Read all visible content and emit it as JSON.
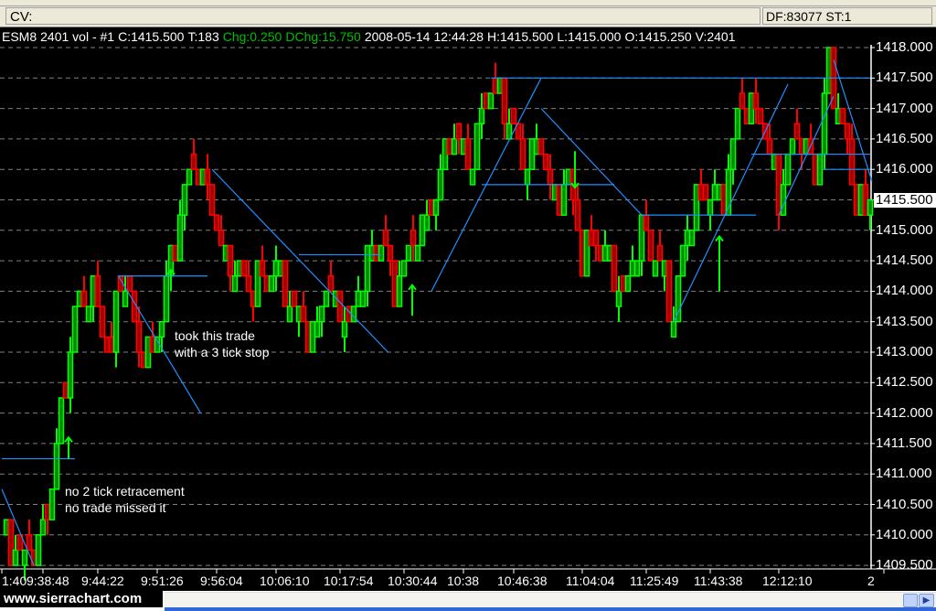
{
  "cv_bar": {
    "label": "CV:",
    "status": "DF:83077  ST:1"
  },
  "header": {
    "symbol": "ESM8",
    "period": "2401 vol - #1",
    "close": "C:1415.500",
    "trades": "T:183",
    "chg": "Chg:0.250",
    "dchg": "DChg:15.750",
    "date": "2008-05-14",
    "time": "12:44:28",
    "high": "H:1415.500",
    "low": "L:1415.000",
    "open": "O:1415.250",
    "volume": "V:2401"
  },
  "colors": {
    "up": "#00ff00",
    "up_fill": "#008a00",
    "down": "#ff0000",
    "down_fill": "#a00000",
    "drawing": "#1e90ff",
    "grid": "#808080",
    "arrow": "#00ff00"
  },
  "annotations": {
    "trade_note": [
      "took this trade",
      "with a 3 tick stop"
    ],
    "missed_note": [
      "no 2 tick retracement",
      "no trade missed it"
    ]
  },
  "footer": {
    "logo": "www.sierrachart.com"
  },
  "chart_data": {
    "type": "bar",
    "title": "",
    "ylim": [
      1409.5,
      1418.0
    ],
    "y_ticks": [
      "1418.000",
      "1417.500",
      "1417.000",
      "1416.500",
      "1416.000",
      "1415.500",
      "1415.000",
      "1414.500",
      "1414.000",
      "1413.500",
      "1413.000",
      "1412.500",
      "1412.000",
      "1411.500",
      "1411.000",
      "1410.500",
      "1410.000",
      "1409.500"
    ],
    "current_price": "1415.500",
    "x_tick_labels": [
      "1:40",
      "9:38:48",
      "9:44:22",
      "9:51:26",
      "9:56:04",
      "10:06:10",
      "10:17:54",
      "10:30:44",
      "10:38",
      "10:46:38",
      "11:04:04",
      "11:25:49",
      "11:43:38",
      "12:12:10",
      "2"
    ],
    "x_tick_bars": [
      0,
      9,
      21,
      34,
      47,
      60,
      74,
      88,
      101,
      112,
      127,
      141,
      155,
      170,
      193
    ],
    "grid": true,
    "price_path": [
      [
        0,
        1410.0
      ],
      [
        4,
        1409.5
      ],
      [
        8,
        1409.75
      ],
      [
        10,
        1410.5
      ],
      [
        13,
        1412.0
      ],
      [
        16,
        1413.5
      ],
      [
        20,
        1414.0
      ],
      [
        24,
        1413.0
      ],
      [
        26,
        1414.25
      ],
      [
        30,
        1413.0
      ],
      [
        33,
        1413.0
      ],
      [
        37,
        1414.5
      ],
      [
        40,
        1415.5
      ],
      [
        42,
        1416.0
      ],
      [
        46,
        1415.5
      ],
      [
        49,
        1414.5
      ],
      [
        54,
        1414.0
      ],
      [
        60,
        1414.5
      ],
      [
        64,
        1413.5
      ],
      [
        68,
        1413.25
      ],
      [
        71,
        1414.25
      ],
      [
        76,
        1413.25
      ],
      [
        80,
        1414.5
      ],
      [
        83,
        1415.0
      ],
      [
        86,
        1414.0
      ],
      [
        89,
        1414.5
      ],
      [
        94,
        1415.5
      ],
      [
        98,
        1416.5
      ],
      [
        102,
        1416.0
      ],
      [
        107,
        1417.5
      ],
      [
        110,
        1417.0
      ],
      [
        114,
        1416.0
      ],
      [
        118,
        1416.5
      ],
      [
        121,
        1415.5
      ],
      [
        124,
        1415.75
      ],
      [
        127,
        1414.5
      ],
      [
        130,
        1415.0
      ],
      [
        133,
        1414.5
      ],
      [
        136,
        1413.75
      ],
      [
        140,
        1415.0
      ],
      [
        144,
        1414.5
      ],
      [
        147,
        1413.5
      ],
      [
        150,
        1415.0
      ],
      [
        154,
        1415.75
      ],
      [
        158,
        1415.5
      ],
      [
        162,
        1417.0
      ],
      [
        166,
        1417.0
      ],
      [
        170,
        1415.5
      ],
      [
        174,
        1416.5
      ],
      [
        178,
        1416.0
      ],
      [
        181,
        1417.75
      ],
      [
        184,
        1416.5
      ],
      [
        187,
        1415.5
      ],
      [
        190,
        1415.25
      ]
    ],
    "drawings": [
      {
        "kind": "hline",
        "from": [
          0,
          1411.25
        ],
        "to": [
          16,
          1411.25
        ]
      },
      {
        "kind": "trend",
        "from": [
          0,
          1410.75
        ],
        "to": [
          7,
          1409.5
        ]
      },
      {
        "kind": "hline",
        "from": [
          25.5,
          1414.25
        ],
        "to": [
          45,
          1414.25
        ]
      },
      {
        "kind": "trend",
        "from": [
          25.5,
          1414.25
        ],
        "to": [
          43.5,
          1412.0
        ]
      },
      {
        "kind": "trend",
        "from": [
          46,
          1416.0
        ],
        "to": [
          84.5,
          1413.0
        ]
      },
      {
        "kind": "hline",
        "from": [
          65,
          1414.6
        ],
        "to": [
          83,
          1414.6
        ]
      },
      {
        "kind": "trend",
        "from": [
          94,
          1414.0
        ],
        "to": [
          118,
          1417.5
        ]
      },
      {
        "kind": "hline",
        "from": [
          107,
          1417.5
        ],
        "to": [
          148,
          1417.5
        ]
      },
      {
        "kind": "hline",
        "from": [
          148,
          1417.5
        ],
        "to": [
          190,
          1417.5
        ]
      },
      {
        "kind": "trend",
        "from": [
          118,
          1417.0
        ],
        "to": [
          140,
          1415.25
        ]
      },
      {
        "kind": "hline",
        "from": [
          105,
          1415.75
        ],
        "to": [
          134,
          1415.75
        ]
      },
      {
        "kind": "hline",
        "from": [
          140,
          1415.25
        ],
        "to": [
          165,
          1415.25
        ]
      },
      {
        "kind": "trend",
        "from": [
          147,
          1413.5
        ],
        "to": [
          172,
          1417.4
        ]
      },
      {
        "kind": "hline",
        "from": [
          164,
          1416.25
        ],
        "to": [
          190,
          1416.25
        ]
      },
      {
        "kind": "trend",
        "from": [
          170,
          1415.25
        ],
        "to": [
          182,
          1417.2
        ]
      },
      {
        "kind": "trend",
        "from": [
          182,
          1417.8
        ],
        "to": [
          190.4,
          1415.8
        ]
      },
      {
        "kind": "hline",
        "from": [
          180,
          1416.0
        ],
        "to": [
          190,
          1416.0
        ]
      }
    ],
    "arrows": [
      {
        "dir": "up",
        "bar": 14.6,
        "from": 1411.25,
        "to": 1411.6
      },
      {
        "dir": "up",
        "bar": 37,
        "from": 1414.0,
        "to": 1414.35
      },
      {
        "dir": "up",
        "bar": 89.8,
        "from": 1413.6,
        "to": 1414.1
      },
      {
        "dir": "down",
        "bar": 125.4,
        "from": 1416.3,
        "to": 1415.7
      },
      {
        "dir": "up",
        "bar": 157,
        "from": 1414.0,
        "to": 1414.9
      }
    ]
  }
}
